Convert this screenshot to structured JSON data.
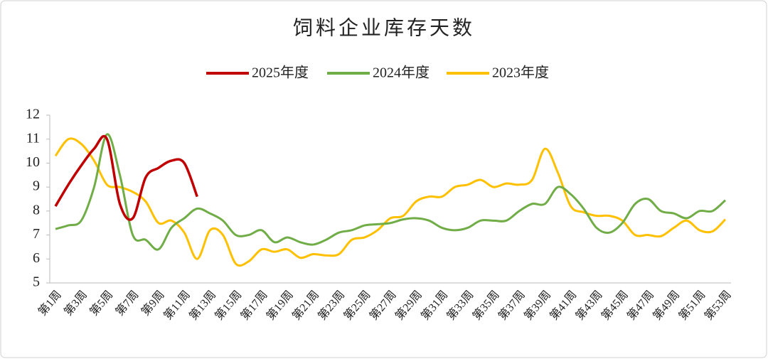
{
  "chart_data": {
    "type": "line",
    "title": "饲料企业库存天数",
    "categories": [
      "第1周",
      null,
      "第3周",
      null,
      "第5周",
      null,
      "第7周",
      null,
      "第9周",
      null,
      "第11周",
      null,
      "第13周",
      null,
      "第15周",
      null,
      "第17周",
      null,
      "第19周",
      null,
      "第21周",
      null,
      "第23周",
      null,
      "第25周",
      null,
      "第27周",
      null,
      "第29周",
      null,
      "第31周",
      null,
      "第33周",
      null,
      "第35周",
      null,
      "第37周",
      null,
      "第39周",
      null,
      "第41周",
      null,
      "第43周",
      null,
      "第45周",
      null,
      "第47周",
      null,
      "第49周",
      null,
      "第51周",
      null,
      "第53周"
    ],
    "series": [
      {
        "name": "2025年度",
        "color": "#c00000",
        "values": [
          8.2,
          9.1,
          9.9,
          10.6,
          11.0,
          8.3,
          7.7,
          9.4,
          9.8,
          10.1,
          10.0,
          8.6,
          null,
          null,
          null,
          null,
          null,
          null,
          null,
          null,
          null,
          null,
          null,
          null,
          null,
          null,
          null,
          null,
          null,
          null,
          null,
          null,
          null,
          null,
          null,
          null,
          null,
          null,
          null,
          null,
          null,
          null,
          null,
          null,
          null,
          null,
          null,
          null,
          null,
          null,
          null,
          null,
          null
        ]
      },
      {
        "name": "2024年度",
        "color": "#70ad47",
        "values": [
          7.25,
          7.4,
          7.6,
          9.0,
          11.2,
          9.5,
          7.0,
          6.8,
          6.4,
          7.3,
          7.7,
          8.1,
          7.9,
          7.6,
          7.0,
          7.0,
          7.2,
          6.7,
          6.9,
          6.7,
          6.6,
          6.8,
          7.1,
          7.2,
          7.4,
          7.45,
          7.5,
          7.65,
          7.7,
          7.6,
          7.3,
          7.2,
          7.3,
          7.6,
          7.6,
          7.6,
          8.0,
          8.3,
          8.3,
          9.0,
          8.7,
          8.1,
          7.3,
          7.1,
          7.5,
          8.3,
          8.5,
          8.0,
          7.9,
          7.7,
          8.0,
          8.0,
          8.45
        ]
      },
      {
        "name": "2023年度",
        "color": "#ffc000",
        "values": [
          10.3,
          11.0,
          10.8,
          10.1,
          9.1,
          9.0,
          8.8,
          8.4,
          7.5,
          7.6,
          7.1,
          6.0,
          7.2,
          7.0,
          5.8,
          5.9,
          6.4,
          6.3,
          6.4,
          6.05,
          6.2,
          6.15,
          6.2,
          6.8,
          6.9,
          7.2,
          7.7,
          7.8,
          8.4,
          8.6,
          8.6,
          9.0,
          9.1,
          9.3,
          9.0,
          9.15,
          9.1,
          9.3,
          10.6,
          9.6,
          8.2,
          7.95,
          7.8,
          7.8,
          7.6,
          7.0,
          7.0,
          6.95,
          7.3,
          7.6,
          7.2,
          7.15,
          7.65
        ]
      }
    ],
    "ylim": [
      5,
      12
    ],
    "yticks": [
      5,
      6,
      7,
      8,
      9,
      10,
      11,
      12
    ],
    "legend": "top"
  }
}
